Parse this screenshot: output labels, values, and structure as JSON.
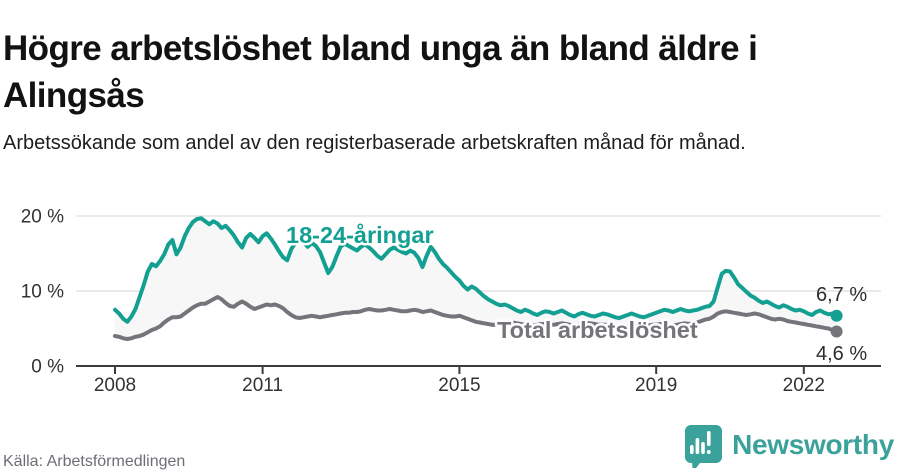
{
  "header": {
    "title": "Högre arbetslöshet bland unga än bland äldre i Alingsås",
    "subtitle": "Arbetssökande som andel av den registerbaserade arbetskraften månad för månad."
  },
  "footer": {
    "source": "Källa: Arbetsförmedlingen",
    "brand": "Newsworthy",
    "logo_icon": "newsworthy-speech-bubble-with-bars-icon"
  },
  "colors": {
    "young_line": "#13a093",
    "total_line": "#74757a",
    "between_fill": "#f7f7f7",
    "gridline": "#e3e3e3",
    "axis": "#3b3b3b",
    "tick_text": "#333333",
    "value_label_text": "#2d2d2d",
    "brand_teal": "#3ba19b"
  },
  "chart_data": {
    "type": "line",
    "x_start": {
      "year": 2008,
      "month": 1
    },
    "x_end": {
      "year": 2022,
      "month": 9
    },
    "x_frequency": "monthly",
    "unit": "%",
    "ylim": [
      0,
      21
    ],
    "grid": "horizontal-only",
    "y_ticks": [
      {
        "value": 0,
        "label": "0 %"
      },
      {
        "value": 10,
        "label": "10 %"
      },
      {
        "value": 20,
        "label": "20 %"
      }
    ],
    "x_ticks": [
      {
        "value": 2008,
        "label": "2008"
      },
      {
        "value": 2011,
        "label": "2011"
      },
      {
        "value": 2015,
        "label": "2015"
      },
      {
        "value": 2019,
        "label": "2019"
      },
      {
        "value": 2022,
        "label": "2022"
      }
    ],
    "series": [
      {
        "name": "18-24-åringar",
        "end_label": "6,7 %",
        "color": "#13a093",
        "values": [
          7.5,
          7.0,
          6.3,
          5.9,
          6.6,
          7.6,
          9.2,
          10.8,
          12.6,
          13.6,
          13.3,
          14.0,
          14.9,
          16.2,
          16.8,
          14.9,
          15.8,
          17.3,
          18.4,
          19.2,
          19.6,
          19.7,
          19.3,
          18.9,
          19.3,
          19.0,
          18.4,
          18.7,
          18.1,
          17.4,
          16.5,
          15.8,
          17.1,
          17.6,
          17.1,
          16.5,
          17.3,
          17.7,
          17.0,
          16.2,
          15.3,
          14.5,
          14.1,
          15.6,
          16.4,
          16.9,
          16.5,
          15.9,
          16.4,
          16.0,
          15.2,
          13.8,
          12.4,
          13.2,
          14.6,
          15.9,
          16.3,
          16.0,
          15.7,
          15.4,
          15.9,
          16.2,
          15.8,
          15.3,
          14.7,
          14.3,
          14.9,
          15.5,
          15.8,
          15.5,
          15.2,
          15.0,
          15.4,
          15.1,
          14.4,
          13.2,
          14.7,
          15.9,
          15.2,
          14.3,
          13.6,
          13.1,
          12.5,
          11.9,
          11.4,
          10.7,
          10.2,
          10.6,
          10.3,
          9.8,
          9.3,
          8.9,
          8.6,
          8.3,
          8.1,
          8.2,
          8.0,
          7.7,
          7.4,
          7.2,
          7.5,
          7.3,
          7.0,
          6.8,
          7.1,
          7.3,
          7.2,
          7.0,
          7.2,
          7.4,
          7.1,
          6.8,
          6.6,
          6.9,
          7.1,
          6.9,
          6.7,
          6.6,
          6.8,
          7.0,
          6.9,
          6.7,
          6.5,
          6.4,
          6.6,
          6.8,
          7.0,
          6.8,
          6.6,
          6.5,
          6.7,
          6.9,
          7.1,
          7.3,
          7.5,
          7.4,
          7.2,
          7.4,
          7.6,
          7.4,
          7.3,
          7.4,
          7.5,
          7.7,
          7.9,
          8.0,
          8.6,
          10.5,
          12.3,
          12.7,
          12.6,
          11.8,
          10.9,
          10.4,
          9.9,
          9.4,
          9.1,
          8.7,
          8.4,
          8.6,
          8.3,
          8.0,
          7.8,
          8.1,
          7.9,
          7.6,
          7.4,
          7.5,
          7.3,
          7.0,
          6.8,
          7.2,
          7.4,
          7.1,
          6.9,
          7.0,
          6.7
        ]
      },
      {
        "name": "Total arbetslöshet",
        "end_label": "4,6 %",
        "color": "#74757a",
        "values": [
          4.0,
          3.9,
          3.7,
          3.6,
          3.7,
          3.9,
          4.0,
          4.2,
          4.5,
          4.8,
          5.0,
          5.3,
          5.8,
          6.2,
          6.5,
          6.5,
          6.6,
          7.0,
          7.4,
          7.8,
          8.1,
          8.3,
          8.3,
          8.6,
          8.9,
          9.2,
          8.9,
          8.4,
          8.0,
          7.9,
          8.3,
          8.6,
          8.3,
          7.9,
          7.6,
          7.8,
          8.0,
          8.2,
          8.1,
          8.2,
          8.0,
          7.7,
          7.2,
          6.8,
          6.5,
          6.4,
          6.5,
          6.6,
          6.7,
          6.6,
          6.5,
          6.6,
          6.7,
          6.8,
          6.9,
          7.0,
          7.1,
          7.1,
          7.2,
          7.2,
          7.3,
          7.5,
          7.6,
          7.5,
          7.4,
          7.4,
          7.5,
          7.6,
          7.5,
          7.4,
          7.3,
          7.3,
          7.4,
          7.5,
          7.4,
          7.2,
          7.3,
          7.4,
          7.2,
          7.0,
          6.8,
          6.7,
          6.6,
          6.6,
          6.7,
          6.5,
          6.3,
          6.1,
          5.9,
          5.8,
          5.7,
          5.6,
          5.5,
          5.5,
          5.6,
          5.6,
          5.7,
          5.8,
          5.7,
          5.6,
          5.5,
          5.4,
          5.4,
          5.5,
          5.6,
          5.6,
          5.5,
          5.5,
          5.6,
          5.7,
          5.6,
          5.5,
          5.4,
          5.5,
          5.6,
          5.7,
          5.7,
          5.6,
          5.5,
          5.5,
          5.5,
          5.4,
          5.3,
          5.3,
          5.2,
          5.3,
          5.4,
          5.4,
          5.3,
          5.3,
          5.4,
          5.5,
          5.5,
          5.6,
          5.5,
          5.4,
          5.4,
          5.5,
          5.6,
          5.7,
          5.6,
          5.7,
          5.8,
          6.0,
          6.2,
          6.3,
          6.6,
          7.0,
          7.2,
          7.3,
          7.2,
          7.1,
          7.0,
          6.9,
          6.8,
          6.9,
          7.0,
          6.9,
          6.7,
          6.5,
          6.3,
          6.2,
          6.3,
          6.2,
          6.0,
          5.9,
          5.8,
          5.7,
          5.6,
          5.5,
          5.4,
          5.3,
          5.2,
          5.1,
          5.0,
          4.8,
          4.6
        ]
      }
    ],
    "legend_position": "inline-labels-on-lines"
  }
}
